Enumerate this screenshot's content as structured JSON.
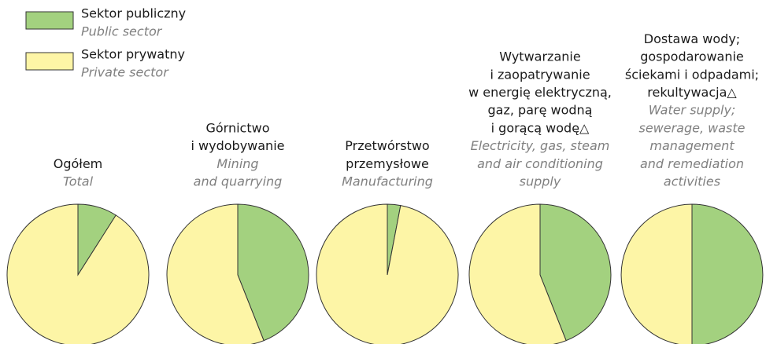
{
  "legend": [
    {
      "name": "Sektor publiczny",
      "translation": "Public sector",
      "color": "#a3d17f"
    },
    {
      "name": "Sektor prywatny",
      "translation": "Private sector",
      "color": "#fdf5a6"
    }
  ],
  "chart_data": [
    {
      "type": "pie",
      "title": [
        "Ogółem"
      ],
      "subtitle": [
        "Total"
      ],
      "categories": [
        "Sektor publiczny",
        "Sektor prywatny"
      ],
      "colors": [
        "#a3d17f",
        "#fdf5a6"
      ],
      "values": [
        9,
        91
      ]
    },
    {
      "type": "pie",
      "title": [
        "Górnictwo",
        "i wydobywanie"
      ],
      "subtitle": [
        "Mining",
        "and quarrying"
      ],
      "categories": [
        "Sektor publiczny",
        "Sektor prywatny"
      ],
      "colors": [
        "#a3d17f",
        "#fdf5a6"
      ],
      "values": [
        44,
        56
      ]
    },
    {
      "type": "pie",
      "title": [
        "Przetwórstwo",
        "przemysłowe"
      ],
      "subtitle": [
        "Manufacturing"
      ],
      "categories": [
        "Sektor publiczny",
        "Sektor prywatny"
      ],
      "colors": [
        "#a3d17f",
        "#fdf5a6"
      ],
      "values": [
        3,
        97
      ]
    },
    {
      "type": "pie",
      "title": [
        "Wytwarzanie",
        "i zaopatrywanie",
        "w energię elektryczną,",
        "gaz, parę wodną",
        "i gorącą wodę△"
      ],
      "subtitle": [
        "Electricity, gas, steam",
        "and air conditioning",
        "supply"
      ],
      "categories": [
        "Sektor publiczny",
        "Sektor prywatny"
      ],
      "colors": [
        "#a3d17f",
        "#fdf5a6"
      ],
      "values": [
        44,
        56
      ]
    },
    {
      "type": "pie",
      "title": [
        "Dostawa wody;",
        "gospodarowanie",
        "ściekami i odpadami;",
        "rekultywacja△"
      ],
      "subtitle": [
        "Water supply;",
        "sewerage, waste",
        "management",
        "and remediation",
        "activities"
      ],
      "categories": [
        "Sektor publiczny",
        "Sektor prywatny"
      ],
      "colors": [
        "#a3d17f",
        "#fdf5a6"
      ],
      "values": [
        50,
        50
      ]
    }
  ]
}
